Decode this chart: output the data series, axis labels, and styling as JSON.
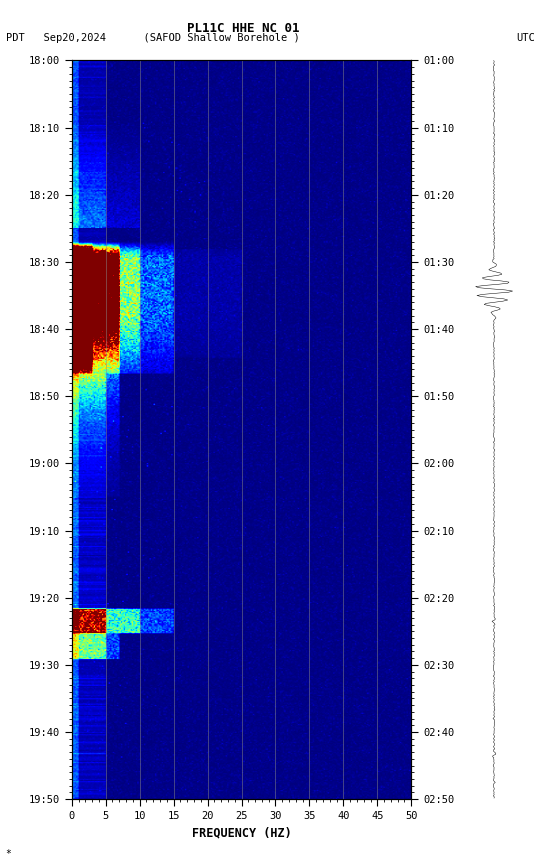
{
  "title_line1": "PL11C HHE NC 01",
  "title_line2_left": "PDT   Sep20,2024      (SAFOD Shallow Borehole )",
  "title_line2_right": "UTC",
  "left_yticks": [
    "18:00",
    "18:10",
    "18:20",
    "18:30",
    "18:40",
    "18:50",
    "19:00",
    "19:10",
    "19:20",
    "19:30",
    "19:40",
    "19:50"
  ],
  "right_yticks": [
    "01:00",
    "01:10",
    "01:20",
    "01:30",
    "01:40",
    "01:50",
    "02:00",
    "02:10",
    "02:20",
    "02:30",
    "02:40",
    "02:50"
  ],
  "xticks": [
    0,
    5,
    10,
    15,
    20,
    25,
    30,
    35,
    40,
    45,
    50
  ],
  "xlabel": "FREQUENCY (HZ)",
  "freq_max": 50,
  "n_freq": 250,
  "n_time": 660,
  "background_color": "#ffffff",
  "fig_width": 5.52,
  "fig_height": 8.64
}
